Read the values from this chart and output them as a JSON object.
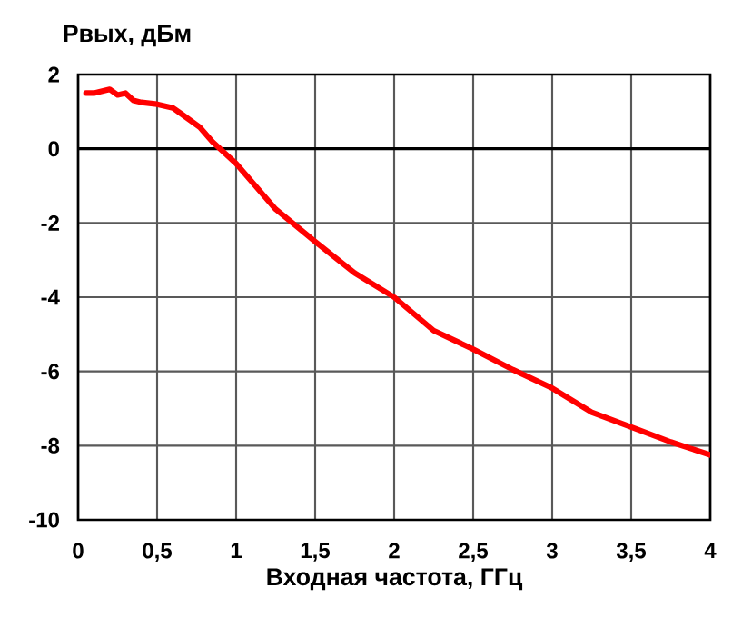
{
  "chart_data": {
    "type": "line",
    "ylabel": "Pвых, дБм",
    "xlabel": "Входная частота, ГГц",
    "xlim": [
      0,
      4
    ],
    "ylim": [
      -10,
      2
    ],
    "xticks": [
      0,
      {
        "value": 0.5,
        "label": "0,5"
      },
      1,
      {
        "value": 1.5,
        "label": "1,5"
      },
      2,
      {
        "value": 2.5,
        "label": "2,5"
      },
      3,
      {
        "value": 3.5,
        "label": "3,5"
      },
      4
    ],
    "yticks": [
      -10,
      -8,
      -6,
      -4,
      -2,
      0,
      2
    ],
    "grid": true,
    "marker": "none",
    "line_style": "solid",
    "ref_lines": [
      {
        "axis": "y",
        "value": 0,
        "color": "#000000"
      }
    ],
    "series": [
      {
        "color": "#ff0000",
        "x": [
          0.05,
          0.1,
          0.2,
          0.25,
          0.3,
          0.35,
          0.4,
          0.5,
          0.6,
          0.65,
          0.77,
          0.85,
          1.0,
          1.25,
          1.5,
          1.75,
          2.0,
          2.25,
          2.5,
          2.75,
          3.0,
          3.25,
          3.5,
          3.75,
          4.0
        ],
        "values": [
          1.5,
          1.5,
          1.6,
          1.45,
          1.5,
          1.3,
          1.25,
          1.2,
          1.1,
          0.95,
          0.58,
          0.19,
          -0.4,
          -1.63,
          -2.5,
          -3.35,
          -4.0,
          -4.9,
          -5.4,
          -5.95,
          -6.45,
          -7.1,
          -7.5,
          -7.9,
          -8.25
        ]
      }
    ]
  }
}
